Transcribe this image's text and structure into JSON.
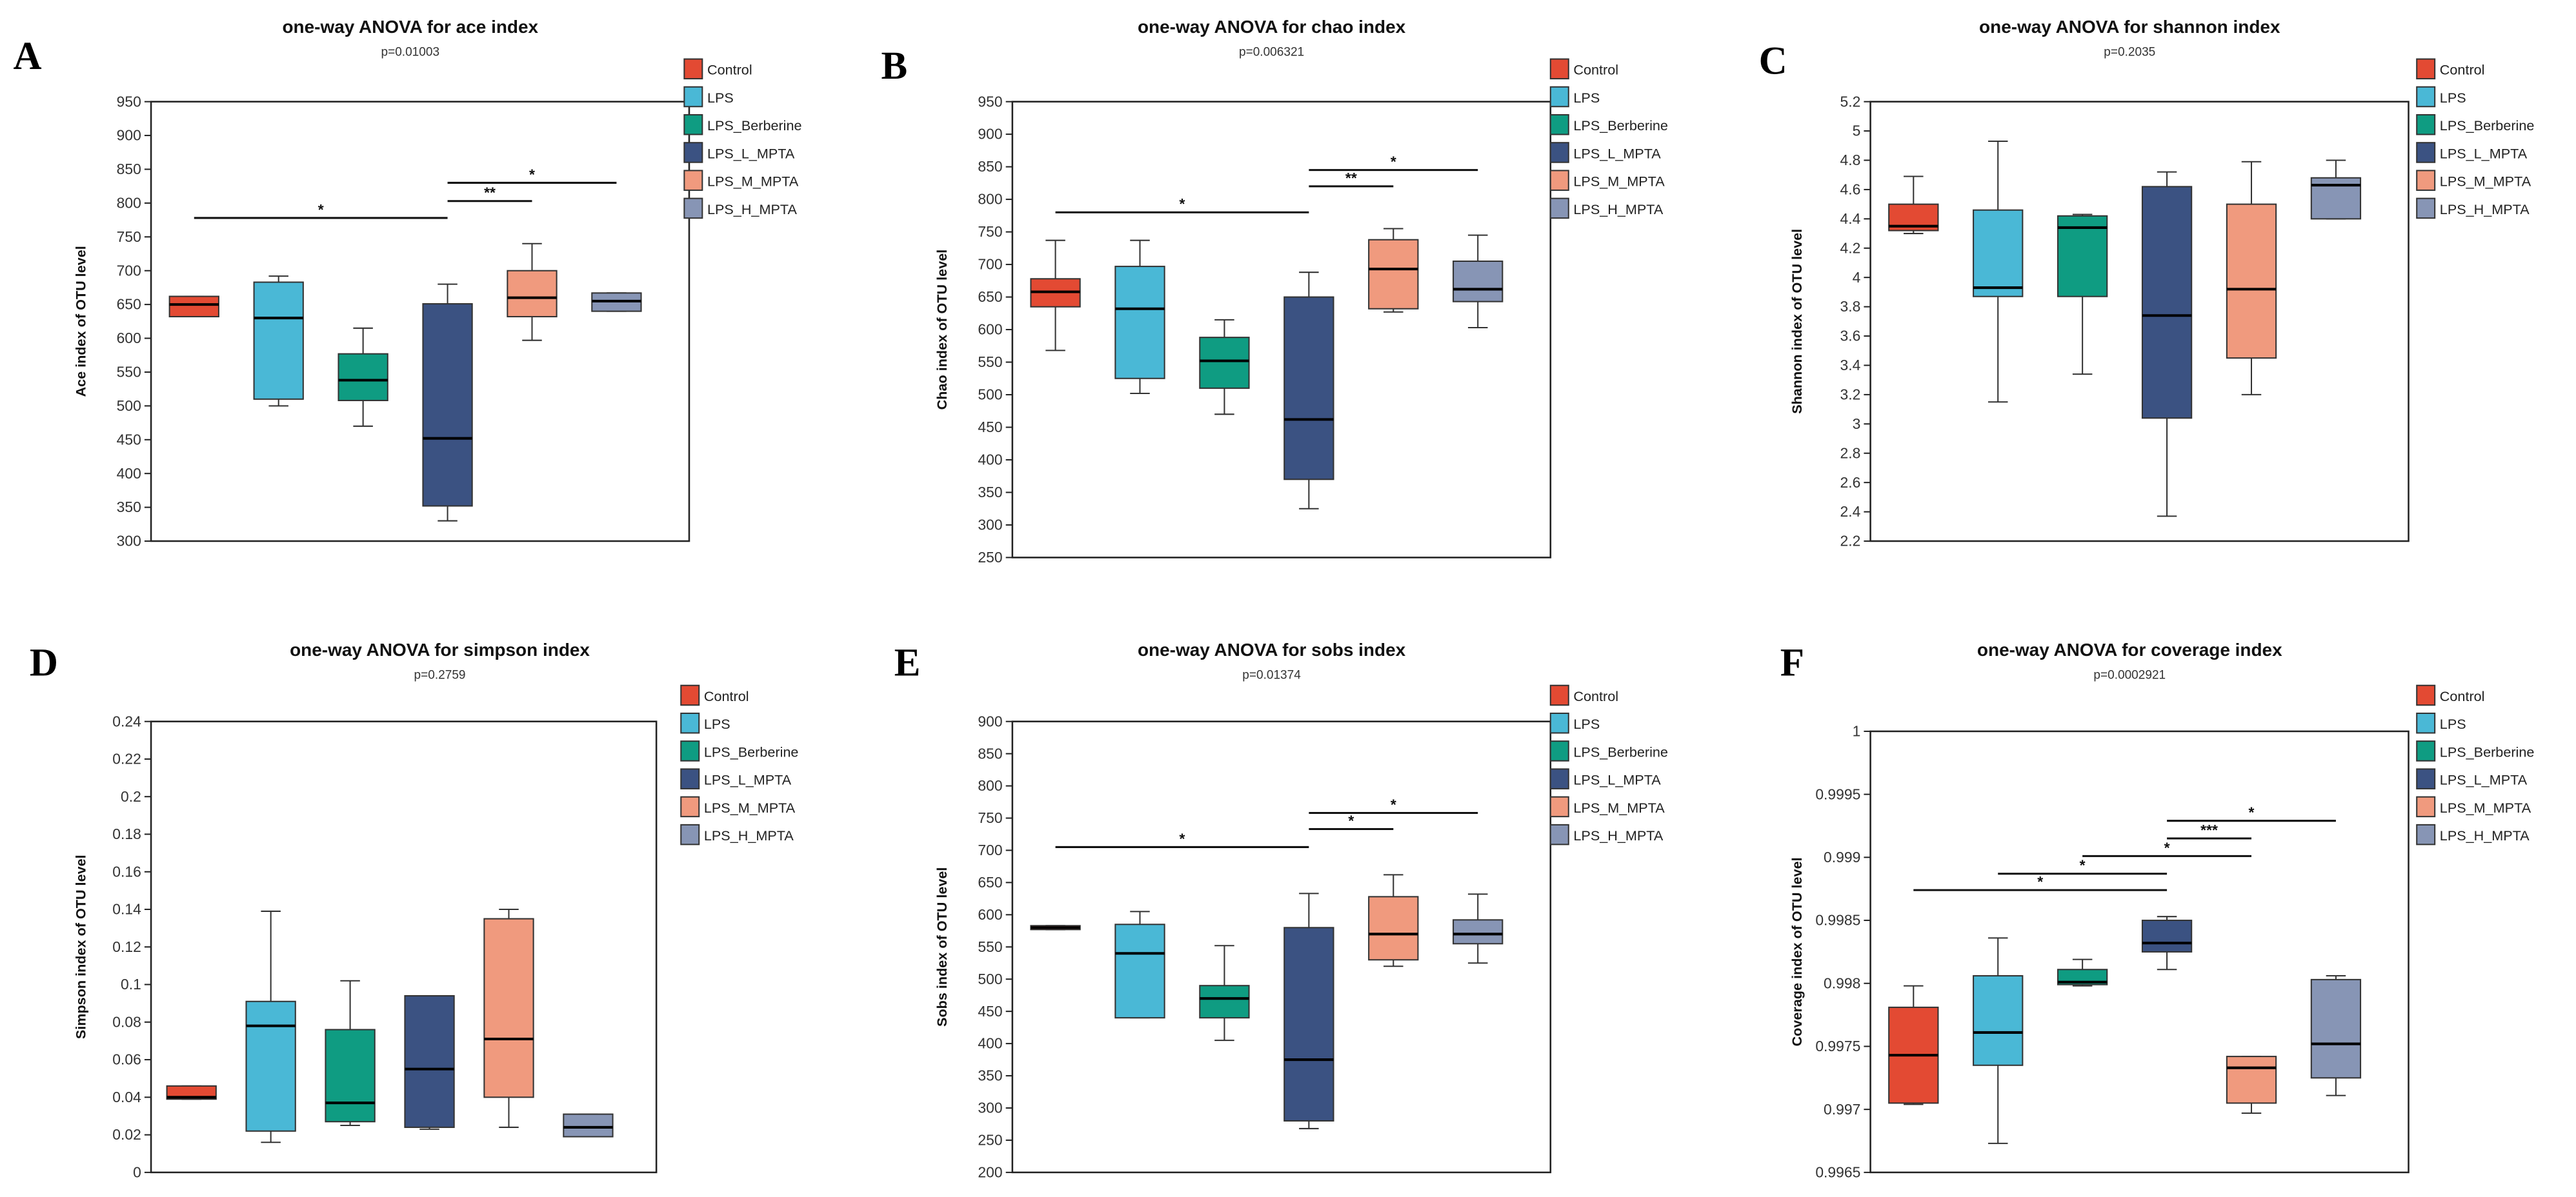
{
  "groups": [
    "Control",
    "LPS",
    "LPS_Berberine",
    "LPS_L_MPTA",
    "LPS_M_MPTA",
    "LPS_H_MPTA"
  ],
  "colors": [
    "#e34a33",
    "#4ab8d6",
    "#0f9c82",
    "#3b5282",
    "#f09a7e",
    "#8795b5"
  ],
  "chart_data": [
    {
      "letter": "A",
      "type": "box",
      "title": "one-way ANOVA for ace index",
      "subtitle": "p=0.01003",
      "ylabel": "Ace index of OTU level",
      "ylim": [
        300,
        950
      ],
      "yticks": [
        "300",
        "350",
        "400",
        "450",
        "500",
        "550",
        "600",
        "650",
        "700",
        "750",
        "800",
        "850",
        "900",
        "950"
      ],
      "boxes": [
        [
          632,
          632,
          650,
          662,
          662
        ],
        [
          500,
          510,
          630,
          683,
          692
        ],
        [
          470,
          508,
          538,
          577,
          615
        ],
        [
          330,
          352,
          452,
          651,
          680
        ],
        [
          597,
          632,
          660,
          700,
          740
        ],
        [
          640,
          640,
          655,
          667,
          667
        ]
      ],
      "significance": [
        {
          "from": 0,
          "to": 3,
          "y": 778,
          "label": "*"
        },
        {
          "from": 3,
          "to": 4,
          "y": 803,
          "label": "**"
        },
        {
          "from": 3,
          "to": 5,
          "y": 830,
          "label": "*"
        }
      ]
    },
    {
      "letter": "B",
      "type": "box",
      "title": "one-way ANOVA for chao index",
      "subtitle": "p=0.006321",
      "ylabel": "Chao index of OTU level",
      "ylim": [
        250,
        950
      ],
      "yticks": [
        "250",
        "300",
        "350",
        "400",
        "450",
        "500",
        "550",
        "600",
        "650",
        "700",
        "750",
        "800",
        "850",
        "900",
        "950"
      ],
      "boxes": [
        [
          568,
          635,
          658,
          678,
          737
        ],
        [
          502,
          525,
          632,
          697,
          737
        ],
        [
          470,
          510,
          552,
          588,
          615
        ],
        [
          325,
          370,
          462,
          650,
          688
        ],
        [
          627,
          632,
          693,
          738,
          755
        ],
        [
          603,
          643,
          662,
          705,
          745
        ]
      ],
      "significance": [
        {
          "from": 0,
          "to": 3,
          "y": 780,
          "label": "*"
        },
        {
          "from": 3,
          "to": 4,
          "y": 820,
          "label": "**"
        },
        {
          "from": 3,
          "to": 5,
          "y": 845,
          "label": "*"
        }
      ]
    },
    {
      "letter": "C",
      "type": "box",
      "title": "one-way ANOVA for shannon index",
      "subtitle": "p=0.2035",
      "ylabel": "Shannon index of OTU level",
      "ylim": [
        2.2,
        5.2
      ],
      "yticks": [
        "2.2",
        "2.4",
        "2.6",
        "2.8",
        "3",
        "3.2",
        "3.4",
        "3.6",
        "3.8",
        "4",
        "4.2",
        "4.4",
        "4.6",
        "4.8",
        "5",
        "5.2"
      ],
      "boxes": [
        [
          4.3,
          4.32,
          4.35,
          4.5,
          4.69
        ],
        [
          3.15,
          3.87,
          3.93,
          4.46,
          4.93
        ],
        [
          3.34,
          3.87,
          4.34,
          4.42,
          4.43
        ],
        [
          2.37,
          3.04,
          3.74,
          4.62,
          4.72
        ],
        [
          3.2,
          3.45,
          3.92,
          4.5,
          4.79
        ],
        [
          4.4,
          4.4,
          4.63,
          4.68,
          4.8
        ]
      ],
      "significance": []
    },
    {
      "letter": "D",
      "type": "box",
      "title": "one-way ANOVA for simpson index",
      "subtitle": "p=0.2759",
      "ylabel": "Simpson index of OTU level",
      "ylim": [
        0,
        0.24
      ],
      "yticks": [
        "0",
        "0.02",
        "0.04",
        "0.06",
        "0.08",
        "0.1",
        "0.12",
        "0.14",
        "0.16",
        "0.18",
        "0.2",
        "0.22",
        "0.24"
      ],
      "boxes": [
        [
          0.039,
          0.039,
          0.04,
          0.046,
          0.046
        ],
        [
          0.016,
          0.022,
          0.078,
          0.091,
          0.139
        ],
        [
          0.025,
          0.027,
          0.037,
          0.076,
          0.102
        ],
        [
          0.023,
          0.024,
          0.055,
          0.094,
          0.094
        ],
        [
          0.024,
          0.04,
          0.071,
          0.135,
          0.14
        ],
        [
          0.019,
          0.019,
          0.024,
          0.031,
          0.031
        ]
      ],
      "significance": []
    },
    {
      "letter": "E",
      "type": "box",
      "title": "one-way ANOVA for sobs index",
      "subtitle": "p=0.01374",
      "ylabel": "Sobs index of OTU level",
      "ylim": [
        200,
        900
      ],
      "yticks": [
        "200",
        "250",
        "300",
        "350",
        "400",
        "450",
        "500",
        "550",
        "600",
        "650",
        "700",
        "750",
        "800",
        "850",
        "900"
      ],
      "boxes": [
        [
          577,
          577,
          580,
          583,
          583
        ],
        [
          440,
          440,
          540,
          585,
          605
        ],
        [
          405,
          440,
          470,
          490,
          552
        ],
        [
          268,
          280,
          375,
          580,
          633
        ],
        [
          520,
          530,
          570,
          628,
          662
        ],
        [
          525,
          555,
          570,
          592,
          632
        ]
      ],
      "significance": [
        {
          "from": 0,
          "to": 3,
          "y": 705,
          "label": "*"
        },
        {
          "from": 3,
          "to": 4,
          "y": 733,
          "label": "*"
        },
        {
          "from": 3,
          "to": 5,
          "y": 758,
          "label": "*"
        }
      ]
    },
    {
      "letter": "F",
      "type": "box",
      "title": "one-way ANOVA for coverage index",
      "subtitle": "p=0.0002921",
      "ylabel": "Coverage index of OTU level",
      "ylim": [
        0.9965,
        1
      ],
      "yticks": [
        "0.9965",
        "0.997",
        "0.9975",
        "0.998",
        "0.9985",
        "0.999",
        "0.9995",
        "1"
      ],
      "boxes": [
        [
          0.99704,
          0.99705,
          0.99743,
          0.99781,
          0.99798
        ],
        [
          0.99673,
          0.99735,
          0.99761,
          0.99806,
          0.99836
        ],
        [
          0.99798,
          0.99799,
          0.99801,
          0.99811,
          0.99819
        ],
        [
          0.99811,
          0.99825,
          0.99832,
          0.9985,
          0.99853
        ],
        [
          0.99697,
          0.99705,
          0.99733,
          0.99742,
          0.99742
        ],
        [
          0.99711,
          0.99725,
          0.99752,
          0.99803,
          0.99806
        ]
      ],
      "significance": [
        {
          "from": 0,
          "to": 3,
          "y": 0.99874,
          "label": "*"
        },
        {
          "from": 1,
          "to": 3,
          "y": 0.99887,
          "label": "*"
        },
        {
          "from": 2,
          "to": 4,
          "y": 0.99901,
          "label": "*"
        },
        {
          "from": 3,
          "to": 4,
          "y": 0.99915,
          "label": "***"
        },
        {
          "from": 3,
          "to": 5,
          "y": 0.99929,
          "label": "*"
        }
      ]
    }
  ]
}
